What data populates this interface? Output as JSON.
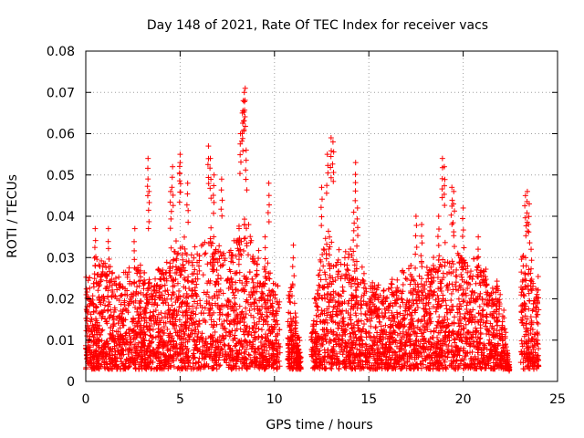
{
  "chart_data": {
    "type": "scatter",
    "title": "Day 148 of 2021, Rate Of TEC Index for receiver vacs",
    "xlabel": "GPS time / hours",
    "ylabel": "ROTI / TECUs",
    "xlim": [
      0,
      25
    ],
    "ylim": [
      0,
      0.08
    ],
    "xticks": [
      0,
      5,
      10,
      15,
      20,
      25
    ],
    "yticks": [
      0,
      0.01,
      0.02,
      0.03,
      0.04,
      0.05,
      0.06,
      0.07,
      0.08
    ],
    "xtick_labels": [
      "0",
      "5",
      "10",
      "15",
      "20",
      "25"
    ],
    "ytick_labels": [
      "0",
      "0.01",
      "0.02",
      "0.03",
      "0.04",
      "0.05",
      "0.06",
      "0.07",
      "0.08"
    ],
    "grid": true,
    "marker": "+",
    "series_color": "#ff0000",
    "points_note": "dense scatter of ROTI samples; notable peaks listed in x/y",
    "x": [
      0.5,
      1.2,
      2.6,
      3.3,
      3.35,
      4.5,
      4.6,
      5.0,
      5.0,
      5.4,
      6.5,
      6.6,
      6.8,
      7.2,
      8.2,
      8.3,
      8.35,
      8.4,
      8.45,
      8.5,
      9.5,
      9.7,
      11.0,
      12.5,
      12.8,
      13.0,
      13.1,
      14.3,
      14.4,
      14.2,
      17.5,
      17.8,
      18.7,
      18.9,
      19.0,
      19.4,
      19.5,
      20.0,
      20.8,
      23.3,
      23.4,
      23.5,
      23.6
    ],
    "y": [
      0.037,
      0.037,
      0.037,
      0.054,
      0.046,
      0.046,
      0.052,
      0.055,
      0.053,
      0.048,
      0.057,
      0.054,
      0.05,
      0.049,
      0.06,
      0.065,
      0.068,
      0.07,
      0.071,
      0.056,
      0.035,
      0.048,
      0.033,
      0.047,
      0.055,
      0.059,
      0.058,
      0.053,
      0.042,
      0.041,
      0.04,
      0.038,
      0.04,
      0.054,
      0.052,
      0.047,
      0.046,
      0.042,
      0.035,
      0.045,
      0.046,
      0.043,
      0.032
    ],
    "density_profile": {
      "hours": [
        0,
        0.5,
        1,
        1.5,
        2,
        2.5,
        3,
        3.5,
        4,
        4.5,
        5,
        5.5,
        6,
        6.5,
        7,
        7.5,
        8,
        8.5,
        9,
        9.5,
        10,
        10.5,
        11,
        11.5,
        12,
        12.5,
        13,
        13.5,
        14,
        14.5,
        15,
        15.5,
        16,
        16.5,
        17,
        17.5,
        18,
        18.5,
        19,
        19.5,
        20,
        20.5,
        21,
        21.5,
        22,
        22.5,
        23,
        23.5,
        24
      ],
      "typical_max": [
        0.022,
        0.028,
        0.026,
        0.025,
        0.024,
        0.026,
        0.028,
        0.023,
        0.026,
        0.03,
        0.034,
        0.03,
        0.032,
        0.035,
        0.033,
        0.03,
        0.034,
        0.04,
        0.03,
        0.028,
        0.022,
        0.018,
        0.022,
        0.0,
        0.012,
        0.03,
        0.035,
        0.03,
        0.03,
        0.026,
        0.024,
        0.022,
        0.022,
        0.025,
        0.025,
        0.026,
        0.028,
        0.028,
        0.03,
        0.032,
        0.03,
        0.028,
        0.028,
        0.025,
        0.02,
        0.0,
        0.03,
        0.03,
        0.022
      ]
    }
  }
}
